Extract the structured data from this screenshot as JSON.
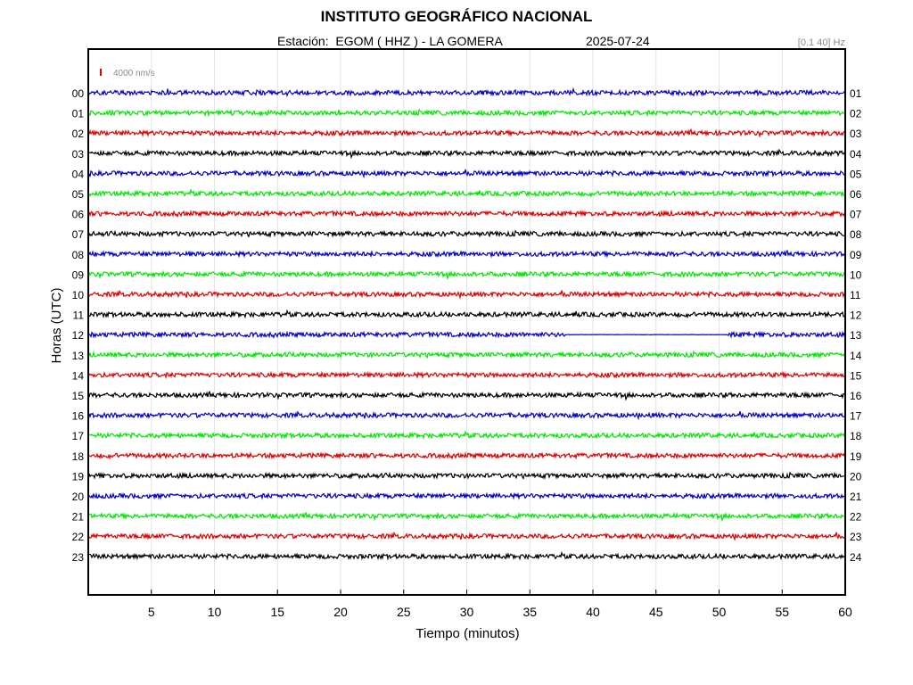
{
  "header": {
    "title": "INSTITUTO GEOGRÁFICO NACIONAL",
    "station": "Estación:  EGOM ( HHZ ) - LA GOMERA",
    "date": "2025-07-24",
    "filter": "[0.1 40] Hz"
  },
  "chart_data": {
    "type": "line",
    "xlabel": "Tiempo (minutos)",
    "ylabel": "Horas (UTC)",
    "xlim": [
      0,
      60
    ],
    "x_ticks": [
      "5",
      "10",
      "15",
      "20",
      "25",
      "30",
      "35",
      "40",
      "45",
      "50",
      "55",
      "60"
    ],
    "left_labels": [
      "00",
      "01",
      "02",
      "03",
      "04",
      "05",
      "06",
      "07",
      "08",
      "09",
      "10",
      "11",
      "12",
      "13",
      "14",
      "15",
      "16",
      "17",
      "18",
      "19",
      "20",
      "21",
      "22",
      "23"
    ],
    "right_labels": [
      "01",
      "02",
      "03",
      "04",
      "05",
      "06",
      "07",
      "08",
      "09",
      "10",
      "11",
      "12",
      "13",
      "14",
      "15",
      "16",
      "17",
      "18",
      "19",
      "20",
      "21",
      "22",
      "23",
      "24"
    ],
    "scale_label": "4000 nm/s",
    "scale_color": "#dd0000",
    "trace_colors": [
      "#0000c8",
      "#00e600",
      "#dd0000",
      "#000000"
    ],
    "grid": true,
    "gaps": [
      {
        "hour": "12",
        "from_min": 37.8,
        "to_min": 50.7
      }
    ]
  }
}
